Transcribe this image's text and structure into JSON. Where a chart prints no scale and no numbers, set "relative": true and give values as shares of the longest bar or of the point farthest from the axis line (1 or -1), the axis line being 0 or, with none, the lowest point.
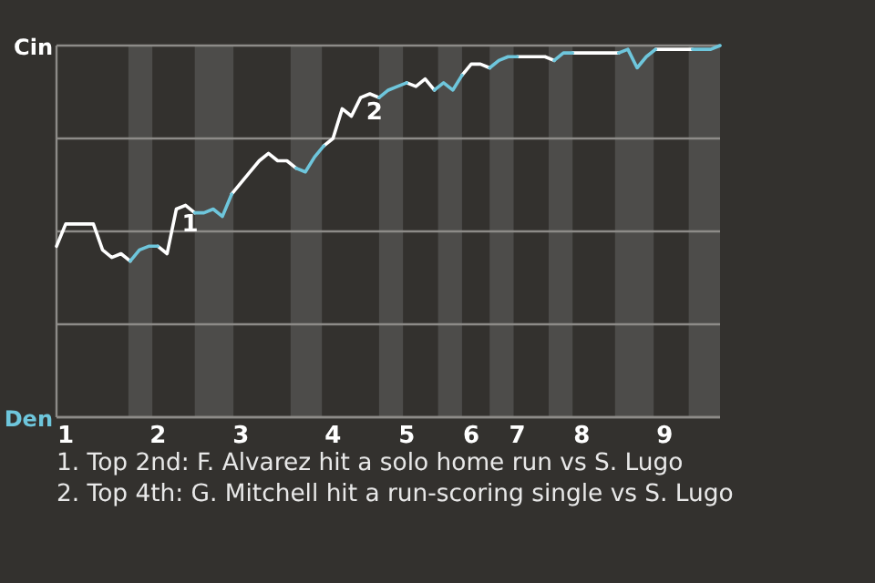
{
  "chart_data": {
    "type": "line",
    "relative": true,
    "categories": [
      null,
      "1",
      null,
      null,
      null,
      null,
      null,
      null,
      null,
      null,
      null,
      "2",
      null,
      null,
      null,
      null,
      null,
      null,
      null,
      null,
      "3",
      null,
      null,
      null,
      null,
      null,
      null,
      null,
      null,
      null,
      "4",
      null,
      null,
      null,
      null,
      null,
      null,
      null,
      "5",
      null,
      null,
      null,
      null,
      null,
      null,
      "6",
      null,
      null,
      null,
      null,
      "7",
      null,
      null,
      null,
      null,
      null,
      null,
      "8",
      null,
      null,
      null,
      null,
      null,
      null,
      null,
      null,
      "9",
      null,
      null,
      null,
      null,
      null,
      null
    ],
    "grid": "y",
    "series": [
      {
        "color": "#ffffff",
        "values": [
          0.46,
          0.52,
          0.52,
          0.52,
          0.52,
          0.45,
          0.43,
          0.44,
          0.42,
          null,
          null,
          0.46,
          0.44,
          0.56,
          0.57,
          0.55,
          null,
          null,
          null,
          0.6,
          0.63,
          0.66,
          0.69,
          0.71,
          0.69,
          0.69,
          0.67,
          null,
          null,
          0.73,
          0.75,
          0.83,
          0.81,
          0.86,
          0.87,
          0.86,
          null,
          null,
          0.9,
          0.89,
          0.91,
          0.88,
          null,
          null,
          0.92,
          0.95,
          0.95,
          0.94,
          null,
          null,
          0.97,
          0.97,
          0.97,
          0.97,
          0.96,
          null,
          0.98,
          0.98,
          0.98,
          0.98,
          0.98,
          0.98,
          null,
          null,
          null,
          0.99,
          0.99,
          0.99,
          0.99,
          0.99,
          null,
          null,
          null
        ]
      },
      {
        "color": "#6ec6dc",
        "values": [
          null,
          null,
          null,
          null,
          null,
          null,
          null,
          null,
          0.42,
          0.45,
          0.46,
          0.46,
          null,
          null,
          null,
          0.55,
          0.55,
          0.56,
          0.54,
          0.6,
          null,
          null,
          null,
          null,
          null,
          null,
          0.67,
          0.66,
          0.7,
          0.73,
          null,
          null,
          null,
          null,
          null,
          0.86,
          0.88,
          0.89,
          0.9,
          null,
          null,
          0.88,
          0.9,
          0.88,
          0.92,
          null,
          null,
          0.94,
          0.96,
          0.97,
          0.97,
          null,
          null,
          null,
          0.96,
          0.98,
          0.98,
          null,
          null,
          null,
          null,
          0.98,
          0.99,
          0.94,
          0.97,
          0.99,
          null,
          null,
          null,
          0.99,
          0.99,
          0.99,
          1
        ]
      }
    ],
    "annotations": [
      "Cin",
      "Den",
      {
        "text": "1",
        "y": 0.56
      },
      {
        "text": "2",
        "y": 0.86
      },
      "1. Top 2nd: F. Alvarez hit a solo home run vs S. Lugo",
      "2. Top 4th: G. Mitchell hit a run-scoring single vs S. Lugo"
    ]
  }
}
